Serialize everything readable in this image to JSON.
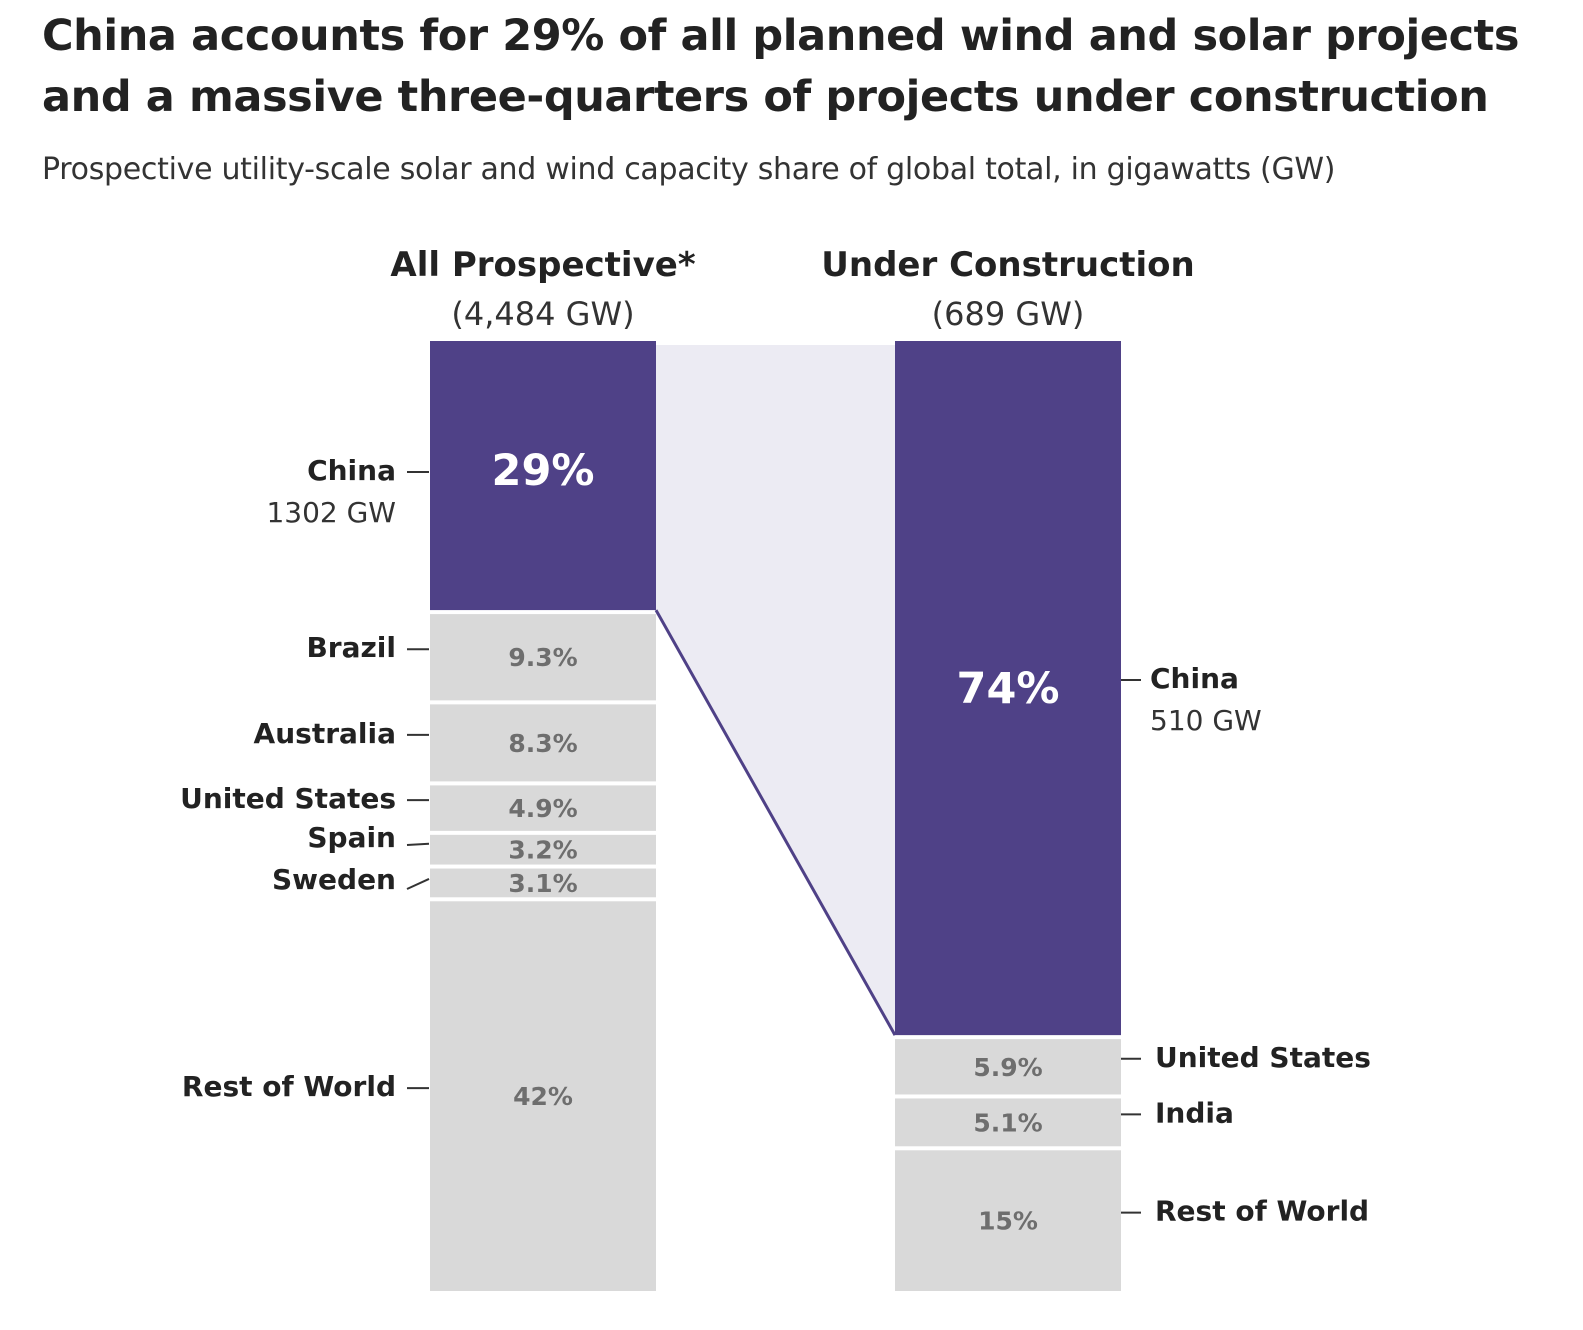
{
  "title": "China accounts for 29% of all planned wind and solar projects and a massive three-quarters of projects under construction",
  "subtitle": "Prospective utility-scale solar and wind capacity share of global total, in gigawatts (GW)",
  "colors": {
    "highlight": "#4f4187",
    "other": "#d9d9d9",
    "connector_fill": "#ecebf3",
    "connector_line": "#4f4187",
    "highlight_label": "#ffffff",
    "other_label": "#6e6e6e",
    "text": "#222222"
  },
  "chart_data": {
    "type": "stacked-bar",
    "columns": [
      {
        "name": "All Prospective*",
        "total_label": "(4,484 GW)",
        "label_side": "left",
        "segments": [
          {
            "name": "China",
            "share": 29,
            "label": "29%",
            "gw_label": "1302 GW",
            "highlight": true
          },
          {
            "name": "Brazil",
            "share": 9.3,
            "label": "9.3%"
          },
          {
            "name": "Australia",
            "share": 8.3,
            "label": "8.3%"
          },
          {
            "name": "United States",
            "share": 4.9,
            "label": "4.9%"
          },
          {
            "name": "Spain",
            "share": 3.2,
            "label": "3.2%"
          },
          {
            "name": "Sweden",
            "share": 3.1,
            "label": "3.1%"
          },
          {
            "name": "Rest of World",
            "share": 42,
            "label": "42%"
          }
        ]
      },
      {
        "name": "Under Construction",
        "total_label": "(689 GW)",
        "label_side": "right",
        "segments": [
          {
            "name": "China",
            "share": 74,
            "label": "74%",
            "gw_label": "510 GW",
            "highlight": true
          },
          {
            "name": "United States",
            "share": 5.9,
            "label": "5.9%"
          },
          {
            "name": "India",
            "share": 5.1,
            "label": "5.1%"
          },
          {
            "name": "Rest of World",
            "share": 15,
            "label": "15%"
          }
        ]
      }
    ]
  }
}
